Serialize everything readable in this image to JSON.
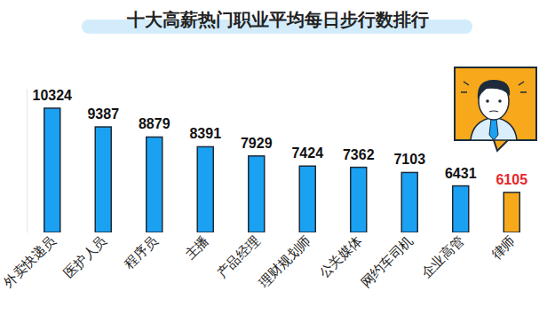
{
  "chart_data": {
    "type": "bar",
    "title": "十大高薪热门职业平均每日步行数排行",
    "categories": [
      "外卖快递员",
      "医护人员",
      "程序员",
      "主播",
      "产品经理",
      "理财规划师",
      "公关媒体",
      "网约车司机",
      "企业高管",
      "律师"
    ],
    "values": [
      10324,
      9387,
      8879,
      8391,
      7929,
      7424,
      7362,
      7103,
      6431,
      6105
    ],
    "colors": [
      "#1ba1f2",
      "#1ba1f2",
      "#1ba1f2",
      "#1ba1f2",
      "#1ba1f2",
      "#1ba1f2",
      "#1ba1f2",
      "#1ba1f2",
      "#1ba1f2",
      "#f7a81b"
    ],
    "ylim": [
      4100,
      11300
    ],
    "yticks": [],
    "grid": false,
    "data_labels": true,
    "tick_labels": "x"
  }
}
